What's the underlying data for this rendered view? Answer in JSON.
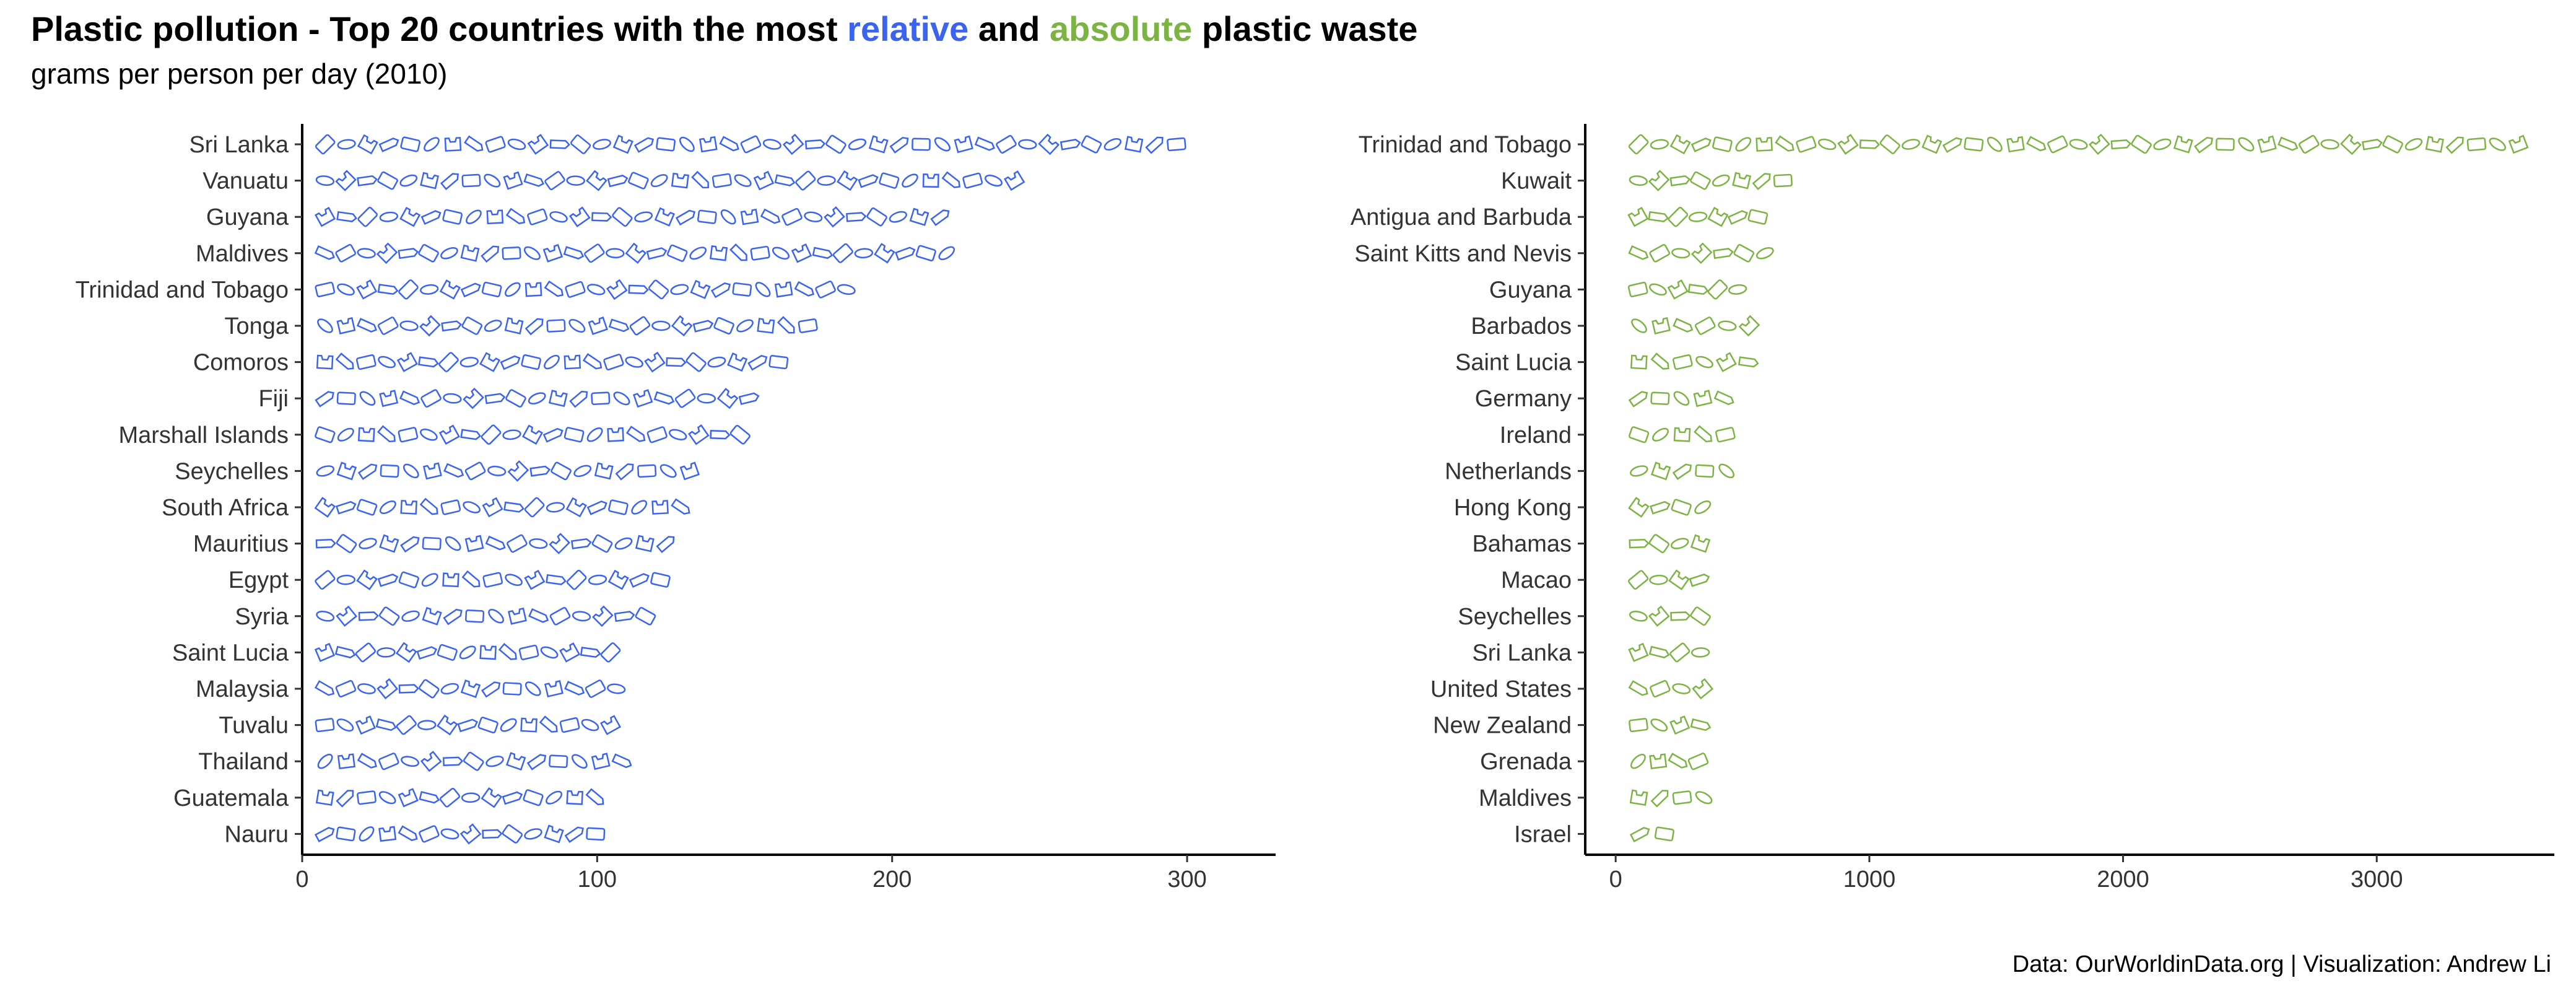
{
  "title": {
    "prefix": "Plastic pollution - Top 20 countries with the most ",
    "relative": "relative",
    "and": " and ",
    "absolute": "absolute",
    "suffix": " plastic waste"
  },
  "subtitle": "grams per person per day (2010)",
  "caption": "Data: OurWorldinData.org | Visualization: Andrew Li",
  "colors": {
    "relative": "#3a63f0",
    "absolute": "#7cb342",
    "axis": "#000000",
    "text": "#333333"
  },
  "chart_data": [
    {
      "type": "bar",
      "orientation": "horizontal",
      "color_key": "relative",
      "categories": [
        "Sri Lanka",
        "Vanuatu",
        "Guyana",
        "Maldives",
        "Trinidad and Tobago",
        "Tonga",
        "Comoros",
        "Fiji",
        "Marshall Islands",
        "Seychelles",
        "South Africa",
        "Mauritius",
        "Egypt",
        "Syria",
        "Saint Lucia",
        "Malaysia",
        "Tuvalu",
        "Thailand",
        "Guatemala",
        "Nauru"
      ],
      "values": [
        300,
        245,
        220,
        222,
        188,
        175,
        165,
        155,
        152,
        135,
        132,
        127,
        125,
        120,
        108,
        110,
        108,
        112,
        103,
        103
      ],
      "xlim": [
        0,
        330
      ],
      "xticks": [
        0,
        100,
        200,
        300
      ],
      "xlabel": "",
      "ylabel": ""
    },
    {
      "type": "bar",
      "orientation": "horizontal",
      "color_key": "absolute",
      "categories": [
        "Trinidad and Tobago",
        "Kuwait",
        "Antigua and Barbuda",
        "Saint Kitts and Nevis",
        "Guyana",
        "Barbados",
        "Saint Lucia",
        "Germany",
        "Ireland",
        "Netherlands",
        "Hong Kong",
        "Bahamas",
        "Macao",
        "Seychelles",
        "Sri Lanka",
        "United States",
        "New Zealand",
        "Grenada",
        "Maldives",
        "Israel"
      ],
      "values": [
        3600,
        700,
        600,
        630,
        520,
        570,
        565,
        470,
        475,
        480,
        385,
        375,
        370,
        375,
        375,
        385,
        375,
        365,
        390,
        240
      ],
      "xlim": [
        -120,
        3700
      ],
      "xticks": [
        0,
        1000,
        2000,
        3000
      ],
      "xlabel": "",
      "ylabel": ""
    }
  ]
}
